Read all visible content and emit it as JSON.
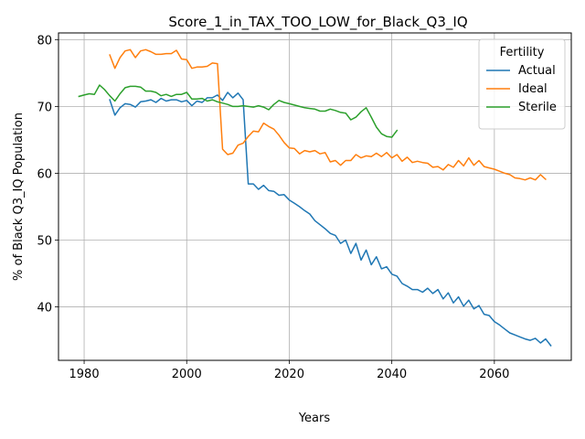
{
  "chart_data": {
    "type": "line",
    "title": "Score_1_in_TAX_TOO_LOW_for_Black_Q3_IQ",
    "xlabel": "Years",
    "ylabel": "% of Black Q3_IQ Population",
    "xlim": [
      1975,
      2075
    ],
    "ylim": [
      32,
      81
    ],
    "x_ticks": [
      1980,
      2000,
      2020,
      2040,
      2060
    ],
    "y_ticks": [
      40,
      50,
      60,
      70,
      80
    ],
    "grid": true,
    "legend": {
      "title": "Fertility",
      "position": "top-right"
    },
    "series": [
      {
        "name": "Actual",
        "color": "#1f77b4",
        "points": [
          [
            1985,
            71.0
          ],
          [
            1986,
            68.7
          ],
          [
            1987,
            69.8
          ],
          [
            1988,
            70.4
          ],
          [
            1989,
            70.3
          ],
          [
            1990,
            69.9
          ],
          [
            1991,
            70.7
          ],
          [
            1992,
            70.8
          ],
          [
            1993,
            71.0
          ],
          [
            1994,
            70.6
          ],
          [
            1995,
            71.2
          ],
          [
            1996,
            70.8
          ],
          [
            1997,
            71.0
          ],
          [
            1998,
            71.0
          ],
          [
            1999,
            70.7
          ],
          [
            2000,
            70.9
          ],
          [
            2001,
            70.1
          ],
          [
            2002,
            70.8
          ],
          [
            2003,
            70.6
          ],
          [
            2004,
            71.3
          ],
          [
            2005,
            71.3
          ],
          [
            2006,
            71.7
          ],
          [
            2007,
            70.9
          ],
          [
            2008,
            72.1
          ],
          [
            2009,
            71.3
          ],
          [
            2010,
            72.0
          ],
          [
            2011,
            71.0
          ],
          [
            2012,
            58.4
          ],
          [
            2013,
            58.4
          ],
          [
            2014,
            57.6
          ],
          [
            2015,
            58.2
          ],
          [
            2016,
            57.4
          ],
          [
            2017,
            57.3
          ],
          [
            2018,
            56.7
          ],
          [
            2019,
            56.8
          ],
          [
            2020,
            56.0
          ],
          [
            2021,
            55.5
          ],
          [
            2022,
            55.0
          ],
          [
            2023,
            54.4
          ],
          [
            2024,
            53.9
          ],
          [
            2025,
            52.9
          ],
          [
            2026,
            52.3
          ],
          [
            2027,
            51.7
          ],
          [
            2028,
            51.0
          ],
          [
            2029,
            50.7
          ],
          [
            2030,
            49.5
          ],
          [
            2031,
            50.0
          ],
          [
            2032,
            48.0
          ],
          [
            2033,
            49.5
          ],
          [
            2034,
            47.0
          ],
          [
            2035,
            48.5
          ],
          [
            2036,
            46.3
          ],
          [
            2037,
            47.5
          ],
          [
            2038,
            45.7
          ],
          [
            2039,
            46.0
          ],
          [
            2040,
            44.9
          ],
          [
            2041,
            44.6
          ],
          [
            2042,
            43.5
          ],
          [
            2043,
            43.1
          ],
          [
            2044,
            42.6
          ],
          [
            2045,
            42.6
          ],
          [
            2046,
            42.2
          ],
          [
            2047,
            42.8
          ],
          [
            2048,
            42.0
          ],
          [
            2049,
            42.6
          ],
          [
            2050,
            41.2
          ],
          [
            2051,
            42.1
          ],
          [
            2052,
            40.6
          ],
          [
            2053,
            41.5
          ],
          [
            2054,
            40.1
          ],
          [
            2055,
            41.0
          ],
          [
            2056,
            39.7
          ],
          [
            2057,
            40.2
          ],
          [
            2058,
            38.9
          ],
          [
            2059,
            38.7
          ],
          [
            2060,
            37.8
          ],
          [
            2061,
            37.3
          ],
          [
            2062,
            36.7
          ],
          [
            2063,
            36.1
          ],
          [
            2064,
            35.8
          ],
          [
            2065,
            35.5
          ],
          [
            2066,
            35.2
          ],
          [
            2067,
            35.0
          ],
          [
            2068,
            35.3
          ],
          [
            2069,
            34.6
          ],
          [
            2070,
            35.2
          ],
          [
            2071,
            34.2
          ]
        ]
      },
      {
        "name": "Ideal",
        "color": "#ff7f0e",
        "points": [
          [
            1985,
            77.7
          ],
          [
            1986,
            75.7
          ],
          [
            1987,
            77.3
          ],
          [
            1988,
            78.3
          ],
          [
            1989,
            78.5
          ],
          [
            1990,
            77.3
          ],
          [
            1991,
            78.3
          ],
          [
            1992,
            78.5
          ],
          [
            1993,
            78.2
          ],
          [
            1994,
            77.8
          ],
          [
            1995,
            77.8
          ],
          [
            1996,
            77.9
          ],
          [
            1997,
            77.9
          ],
          [
            1998,
            78.4
          ],
          [
            1999,
            77.1
          ],
          [
            2000,
            77.0
          ],
          [
            2001,
            75.7
          ],
          [
            2002,
            75.9
          ],
          [
            2003,
            75.9
          ],
          [
            2004,
            76.0
          ],
          [
            2005,
            76.5
          ],
          [
            2006,
            76.4
          ],
          [
            2007,
            63.6
          ],
          [
            2008,
            62.8
          ],
          [
            2009,
            63.0
          ],
          [
            2010,
            64.2
          ],
          [
            2011,
            64.5
          ],
          [
            2012,
            65.5
          ],
          [
            2013,
            66.3
          ],
          [
            2014,
            66.2
          ],
          [
            2015,
            67.5
          ],
          [
            2016,
            67.0
          ],
          [
            2017,
            66.6
          ],
          [
            2018,
            65.7
          ],
          [
            2019,
            64.6
          ],
          [
            2020,
            63.8
          ],
          [
            2021,
            63.7
          ],
          [
            2022,
            62.9
          ],
          [
            2023,
            63.4
          ],
          [
            2024,
            63.2
          ],
          [
            2025,
            63.4
          ],
          [
            2026,
            62.9
          ],
          [
            2027,
            63.1
          ],
          [
            2028,
            61.7
          ],
          [
            2029,
            61.9
          ],
          [
            2030,
            61.2
          ],
          [
            2031,
            61.9
          ],
          [
            2032,
            61.9
          ],
          [
            2033,
            62.8
          ],
          [
            2034,
            62.3
          ],
          [
            2035,
            62.6
          ],
          [
            2036,
            62.5
          ],
          [
            2037,
            63.0
          ],
          [
            2038,
            62.5
          ],
          [
            2039,
            63.1
          ],
          [
            2040,
            62.3
          ],
          [
            2041,
            62.8
          ],
          [
            2042,
            61.8
          ],
          [
            2043,
            62.4
          ],
          [
            2044,
            61.6
          ],
          [
            2045,
            61.8
          ],
          [
            2046,
            61.6
          ],
          [
            2047,
            61.5
          ],
          [
            2048,
            60.9
          ],
          [
            2049,
            61.0
          ],
          [
            2050,
            60.5
          ],
          [
            2051,
            61.3
          ],
          [
            2052,
            60.9
          ],
          [
            2053,
            61.9
          ],
          [
            2054,
            61.1
          ],
          [
            2055,
            62.3
          ],
          [
            2056,
            61.2
          ],
          [
            2057,
            61.9
          ],
          [
            2058,
            61.0
          ],
          [
            2059,
            60.8
          ],
          [
            2060,
            60.6
          ],
          [
            2061,
            60.3
          ],
          [
            2062,
            60.0
          ],
          [
            2063,
            59.8
          ],
          [
            2064,
            59.3
          ],
          [
            2065,
            59.2
          ],
          [
            2066,
            59.0
          ],
          [
            2067,
            59.3
          ],
          [
            2068,
            59.0
          ],
          [
            2069,
            59.8
          ],
          [
            2070,
            59.1
          ]
        ]
      },
      {
        "name": "Sterile",
        "color": "#2ca02c",
        "points": [
          [
            1979,
            71.5
          ],
          [
            1980,
            71.7
          ],
          [
            1981,
            71.9
          ],
          [
            1982,
            71.8
          ],
          [
            1983,
            73.2
          ],
          [
            1984,
            72.5
          ],
          [
            1985,
            71.6
          ],
          [
            1986,
            70.8
          ],
          [
            1987,
            71.9
          ],
          [
            1988,
            72.8
          ],
          [
            1989,
            73.0
          ],
          [
            1990,
            73.0
          ],
          [
            1991,
            72.9
          ],
          [
            1992,
            72.3
          ],
          [
            1993,
            72.3
          ],
          [
            1994,
            72.1
          ],
          [
            1995,
            71.6
          ],
          [
            1996,
            71.8
          ],
          [
            1997,
            71.5
          ],
          [
            1998,
            71.8
          ],
          [
            1999,
            71.8
          ],
          [
            2000,
            72.1
          ],
          [
            2001,
            71.1
          ],
          [
            2002,
            71.1
          ],
          [
            2003,
            71.2
          ],
          [
            2004,
            70.8
          ],
          [
            2005,
            71.0
          ],
          [
            2006,
            70.7
          ],
          [
            2007,
            70.5
          ],
          [
            2008,
            70.3
          ],
          [
            2009,
            70.0
          ],
          [
            2010,
            70.0
          ],
          [
            2011,
            70.1
          ],
          [
            2012,
            70.0
          ],
          [
            2013,
            69.9
          ],
          [
            2014,
            70.1
          ],
          [
            2015,
            69.9
          ],
          [
            2016,
            69.5
          ],
          [
            2017,
            70.3
          ],
          [
            2018,
            70.9
          ],
          [
            2019,
            70.6
          ],
          [
            2020,
            70.4
          ],
          [
            2021,
            70.2
          ],
          [
            2022,
            70.0
          ],
          [
            2023,
            69.8
          ],
          [
            2024,
            69.7
          ],
          [
            2025,
            69.6
          ],
          [
            2026,
            69.3
          ],
          [
            2027,
            69.3
          ],
          [
            2028,
            69.6
          ],
          [
            2029,
            69.4
          ],
          [
            2030,
            69.1
          ],
          [
            2031,
            69.0
          ],
          [
            2032,
            68.0
          ],
          [
            2033,
            68.4
          ],
          [
            2034,
            69.2
          ],
          [
            2035,
            69.8
          ],
          [
            2036,
            68.4
          ],
          [
            2037,
            66.9
          ],
          [
            2038,
            65.9
          ],
          [
            2039,
            65.5
          ],
          [
            2040,
            65.4
          ],
          [
            2041,
            66.4
          ]
        ]
      }
    ]
  }
}
